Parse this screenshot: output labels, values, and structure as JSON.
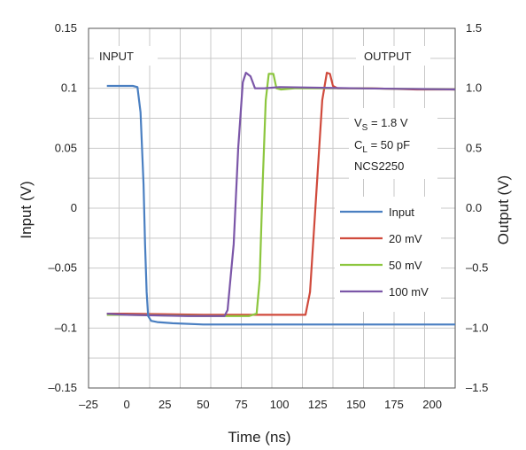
{
  "chart_data": {
    "type": "line",
    "xlabel": "Time (ns)",
    "ylabel_left": "Input (V)",
    "ylabel_right": "Output (V)",
    "xlim": [
      -25,
      215
    ],
    "ylim_left": [
      -0.15,
      0.15
    ],
    "ylim_right": [
      -1.5,
      1.5
    ],
    "x_ticks": [
      -25,
      0,
      25,
      50,
      75,
      100,
      125,
      150,
      175,
      200
    ],
    "x_tick_labels": [
      "–25",
      "0",
      "25",
      "50",
      "75",
      "100",
      "125",
      "150",
      "175",
      "200"
    ],
    "y_left_ticks": [
      0.15,
      0.1,
      0.05,
      0,
      -0.05,
      -0.1,
      -0.15
    ],
    "y_left_tick_labels": [
      "0.15",
      "0.1",
      "0.05",
      "0",
      "–0.05",
      "–0.1",
      "–0.15"
    ],
    "y_right_ticks": [
      1.5,
      1.0,
      0.5,
      0.0,
      -0.5,
      -1.0,
      -1.5
    ],
    "y_right_tick_labels": [
      "1.5",
      "1.0",
      "0.5",
      "0.0",
      "–0.5",
      "–1.0",
      "–1.5"
    ],
    "grid": true,
    "legend_position": "right",
    "annotations": {
      "input_label": "INPUT",
      "output_label": "OUTPUT",
      "vs_main": "V",
      "vs_sub": "S",
      "vs_rest": " = 1.8 V",
      "cl_main": "C",
      "cl_sub": "L",
      "cl_rest": " = 50 pF",
      "part": "NCS2250"
    },
    "series": [
      {
        "name": "Input",
        "axis": "left",
        "color": "#4a7fc1",
        "points": [
          [
            -13,
            0.102
          ],
          [
            -5,
            0.102
          ],
          [
            4,
            0.102
          ],
          [
            7,
            0.101
          ],
          [
            9,
            0.08
          ],
          [
            11,
            0.02
          ],
          [
            12,
            -0.03
          ],
          [
            13,
            -0.07
          ],
          [
            14,
            -0.09
          ],
          [
            16,
            -0.094
          ],
          [
            20,
            -0.095
          ],
          [
            30,
            -0.096
          ],
          [
            50,
            -0.097
          ],
          [
            100,
            -0.097
          ],
          [
            150,
            -0.097
          ],
          [
            215,
            -0.097
          ]
        ]
      },
      {
        "name": "20 mV",
        "axis": "right",
        "color": "#d04a3c",
        "points": [
          [
            -13,
            -0.88
          ],
          [
            0,
            -0.88
          ],
          [
            50,
            -0.89
          ],
          [
            100,
            -0.89
          ],
          [
            117,
            -0.89
          ],
          [
            120,
            -0.7
          ],
          [
            124,
            0.1
          ],
          [
            128,
            0.9
          ],
          [
            131,
            1.13
          ],
          [
            133,
            1.12
          ],
          [
            135,
            1.02
          ],
          [
            138,
            1.0
          ],
          [
            160,
            1.0
          ],
          [
            190,
            0.99
          ],
          [
            215,
            0.99
          ]
        ]
      },
      {
        "name": "50 mV",
        "axis": "right",
        "color": "#8cc63e",
        "points": [
          [
            -13,
            -0.89
          ],
          [
            0,
            -0.89
          ],
          [
            50,
            -0.9
          ],
          [
            80,
            -0.9
          ],
          [
            85,
            -0.88
          ],
          [
            87,
            -0.6
          ],
          [
            89,
            0.2
          ],
          [
            91,
            0.9
          ],
          [
            93,
            1.12
          ],
          [
            96,
            1.12
          ],
          [
            98,
            1.0
          ],
          [
            101,
            0.99
          ],
          [
            110,
            1.0
          ],
          [
            150,
            1.0
          ],
          [
            215,
            0.99
          ]
        ]
      },
      {
        "name": "100 mV",
        "axis": "right",
        "color": "#7b56a8",
        "points": [
          [
            -13,
            -0.88
          ],
          [
            0,
            -0.89
          ],
          [
            40,
            -0.9
          ],
          [
            64,
            -0.9
          ],
          [
            66,
            -0.85
          ],
          [
            70,
            -0.3
          ],
          [
            73,
            0.5
          ],
          [
            76,
            1.05
          ],
          [
            78,
            1.13
          ],
          [
            81,
            1.1
          ],
          [
            84,
            1.0
          ],
          [
            90,
            1.0
          ],
          [
            100,
            1.01
          ],
          [
            150,
            1.0
          ],
          [
            215,
            0.99
          ]
        ]
      }
    ]
  }
}
